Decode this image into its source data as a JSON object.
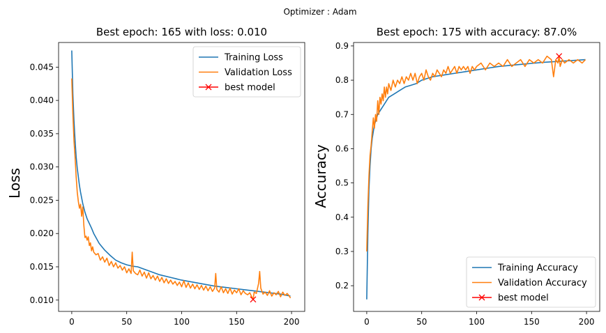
{
  "figure": {
    "suptitle": "Optimizer : Adam"
  },
  "chart_data": [
    {
      "type": "line",
      "title": "Best epoch: 165 with loss: 0.010",
      "xlabel": "",
      "ylabel": "Loss",
      "xlim": [
        -12,
        212
      ],
      "ylim": [
        0.0083,
        0.0487
      ],
      "xticks": [
        0,
        50,
        100,
        150,
        200
      ],
      "yticks": [
        0.01,
        0.015,
        0.02,
        0.025,
        0.03,
        0.035,
        0.04,
        0.045
      ],
      "ytick_labels": [
        "0.010",
        "0.015",
        "0.020",
        "0.025",
        "0.030",
        "0.035",
        "0.040",
        "0.045"
      ],
      "legend_position": "top-right",
      "series": [
        {
          "name": "Training Loss",
          "color": "#1f77b4",
          "x": [
            0,
            1,
            2,
            3,
            4,
            5,
            6,
            7,
            8,
            10,
            12,
            14,
            16,
            18,
            20,
            25,
            30,
            35,
            40,
            45,
            50,
            55,
            60,
            65,
            70,
            80,
            90,
            100,
            110,
            120,
            130,
            140,
            150,
            160,
            170,
            180,
            190,
            199
          ],
          "y": [
            0.0475,
            0.041,
            0.037,
            0.034,
            0.0315,
            0.0298,
            0.0285,
            0.0272,
            0.0262,
            0.0245,
            0.0232,
            0.0222,
            0.0215,
            0.0208,
            0.02,
            0.0185,
            0.0175,
            0.0167,
            0.016,
            0.0156,
            0.0153,
            0.0151,
            0.015,
            0.0147,
            0.0144,
            0.0138,
            0.0134,
            0.013,
            0.0127,
            0.0124,
            0.0121,
            0.0119,
            0.0117,
            0.0115,
            0.0113,
            0.0111,
            0.0109,
            0.0106
          ]
        },
        {
          "name": "Validation Loss",
          "color": "#ff7f0e",
          "x": [
            0,
            1,
            2,
            3,
            4,
            5,
            6,
            7,
            8,
            9,
            10,
            11,
            12,
            13,
            14,
            15,
            16,
            17,
            18,
            19,
            20,
            22,
            24,
            26,
            28,
            30,
            32,
            34,
            36,
            38,
            40,
            42,
            44,
            46,
            48,
            50,
            52,
            54,
            55,
            56,
            58,
            60,
            62,
            64,
            66,
            68,
            70,
            72,
            74,
            76,
            78,
            80,
            82,
            84,
            86,
            88,
            90,
            92,
            94,
            96,
            98,
            100,
            102,
            104,
            106,
            108,
            110,
            112,
            114,
            116,
            118,
            120,
            122,
            124,
            126,
            128,
            130,
            131,
            132,
            134,
            136,
            138,
            140,
            142,
            144,
            146,
            148,
            150,
            152,
            154,
            156,
            158,
            160,
            162,
            164,
            165,
            166,
            168,
            170,
            171,
            172,
            174,
            176,
            178,
            180,
            182,
            184,
            186,
            188,
            190,
            192,
            194,
            196,
            198,
            199
          ],
          "y": [
            0.0433,
            0.038,
            0.034,
            0.0315,
            0.0285,
            0.0262,
            0.0248,
            0.0238,
            0.0244,
            0.0226,
            0.024,
            0.0212,
            0.0194,
            0.0196,
            0.019,
            0.0195,
            0.0182,
            0.0186,
            0.0174,
            0.018,
            0.0172,
            0.0168,
            0.017,
            0.016,
            0.0165,
            0.0157,
            0.0163,
            0.0152,
            0.0158,
            0.015,
            0.0156,
            0.0148,
            0.0152,
            0.0145,
            0.015,
            0.0141,
            0.0147,
            0.014,
            0.0172,
            0.0144,
            0.014,
            0.0138,
            0.0145,
            0.0136,
            0.0142,
            0.0133,
            0.0141,
            0.0132,
            0.0137,
            0.013,
            0.0136,
            0.0128,
            0.0134,
            0.0126,
            0.0132,
            0.0125,
            0.013,
            0.0124,
            0.0128,
            0.0122,
            0.0127,
            0.012,
            0.0129,
            0.0119,
            0.0126,
            0.0118,
            0.0124,
            0.0117,
            0.0123,
            0.0116,
            0.0122,
            0.0115,
            0.0121,
            0.0114,
            0.012,
            0.0113,
            0.0118,
            0.014,
            0.0116,
            0.0112,
            0.012,
            0.0111,
            0.0117,
            0.011,
            0.0118,
            0.0109,
            0.0115,
            0.0111,
            0.0117,
            0.0108,
            0.0114,
            0.011,
            0.0108,
            0.0111,
            0.0104,
            0.0101,
            0.0112,
            0.011,
            0.0125,
            0.0143,
            0.0118,
            0.0109,
            0.0112,
            0.0107,
            0.0114,
            0.0106,
            0.0111,
            0.0108,
            0.0113,
            0.0105,
            0.0112,
            0.0107,
            0.011,
            0.0106,
            0.0103
          ]
        },
        {
          "name": "best model",
          "color": "#ff0000",
          "marker": "x",
          "x": [
            165
          ],
          "y": [
            0.0101
          ]
        }
      ]
    },
    {
      "type": "line",
      "title": "Best epoch: 175 with accuracy: 87.0%",
      "xlabel": "",
      "ylabel": "Accuracy",
      "xlim": [
        -12,
        212
      ],
      "ylim": [
        0.125,
        0.91
      ],
      "xticks": [
        0,
        50,
        100,
        150,
        200
      ],
      "yticks": [
        0.2,
        0.3,
        0.4,
        0.5,
        0.6,
        0.7,
        0.8,
        0.9
      ],
      "ytick_labels": [
        "0.2",
        "0.3",
        "0.4",
        "0.5",
        "0.6",
        "0.7",
        "0.8",
        "0.9"
      ],
      "legend_position": "bottom-right",
      "series": [
        {
          "name": "Training Accuracy",
          "color": "#1f77b4",
          "x": [
            0,
            1,
            2,
            3,
            4,
            5,
            6,
            7,
            8,
            10,
            12,
            14,
            16,
            18,
            20,
            25,
            30,
            35,
            40,
            45,
            50,
            60,
            70,
            80,
            90,
            100,
            110,
            120,
            130,
            140,
            150,
            160,
            170,
            180,
            190,
            199
          ],
          "y": [
            0.16,
            0.35,
            0.48,
            0.55,
            0.6,
            0.63,
            0.65,
            0.67,
            0.68,
            0.7,
            0.71,
            0.72,
            0.73,
            0.74,
            0.75,
            0.76,
            0.77,
            0.78,
            0.785,
            0.79,
            0.8,
            0.81,
            0.815,
            0.82,
            0.825,
            0.83,
            0.835,
            0.84,
            0.843,
            0.846,
            0.849,
            0.852,
            0.854,
            0.856,
            0.858,
            0.86
          ]
        },
        {
          "name": "Validation Accuracy",
          "color": "#ff7f0e",
          "x": [
            0,
            1,
            2,
            3,
            4,
            5,
            6,
            7,
            8,
            9,
            10,
            11,
            12,
            13,
            14,
            15,
            16,
            17,
            18,
            19,
            20,
            22,
            24,
            26,
            28,
            30,
            32,
            34,
            36,
            38,
            40,
            42,
            44,
            46,
            48,
            50,
            52,
            54,
            56,
            58,
            60,
            62,
            64,
            66,
            68,
            70,
            72,
            74,
            76,
            78,
            80,
            82,
            84,
            86,
            88,
            90,
            92,
            94,
            96,
            98,
            100,
            104,
            108,
            112,
            116,
            120,
            124,
            128,
            132,
            136,
            140,
            144,
            148,
            152,
            156,
            160,
            164,
            168,
            170,
            172,
            174,
            175,
            176,
            178,
            180,
            184,
            188,
            192,
            196,
            199
          ],
          "y": [
            0.3,
            0.43,
            0.52,
            0.58,
            0.61,
            0.65,
            0.69,
            0.66,
            0.7,
            0.68,
            0.74,
            0.7,
            0.75,
            0.73,
            0.76,
            0.74,
            0.78,
            0.75,
            0.78,
            0.76,
            0.79,
            0.77,
            0.8,
            0.78,
            0.8,
            0.79,
            0.81,
            0.79,
            0.81,
            0.8,
            0.82,
            0.8,
            0.82,
            0.79,
            0.81,
            0.82,
            0.8,
            0.83,
            0.81,
            0.8,
            0.82,
            0.81,
            0.83,
            0.82,
            0.81,
            0.83,
            0.82,
            0.84,
            0.82,
            0.83,
            0.84,
            0.82,
            0.84,
            0.83,
            0.84,
            0.83,
            0.84,
            0.82,
            0.84,
            0.83,
            0.84,
            0.85,
            0.83,
            0.85,
            0.84,
            0.85,
            0.84,
            0.86,
            0.84,
            0.85,
            0.86,
            0.84,
            0.86,
            0.85,
            0.86,
            0.85,
            0.87,
            0.86,
            0.81,
            0.86,
            0.85,
            0.87,
            0.84,
            0.86,
            0.85,
            0.86,
            0.85,
            0.86,
            0.85,
            0.86
          ]
        },
        {
          "name": "best model",
          "color": "#ff0000",
          "marker": "x",
          "x": [
            175
          ],
          "y": [
            0.87
          ]
        }
      ]
    }
  ]
}
